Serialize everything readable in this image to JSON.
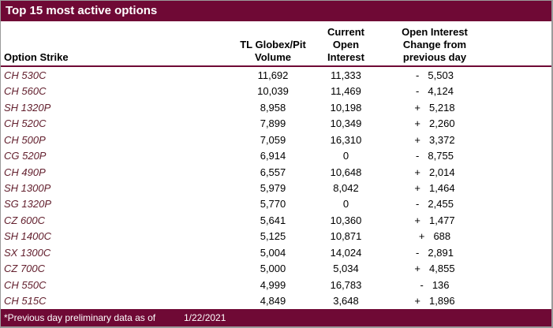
{
  "title": "Top 15 most active options",
  "columns": {
    "strike": "Option Strike",
    "volume": [
      "TL Globex/Pit",
      "Volume"
    ],
    "open_interest": [
      "Current",
      "Open",
      "Interest"
    ],
    "change": [
      "Open Interest",
      "Change from",
      "previous day"
    ]
  },
  "rows": [
    {
      "strike": "CH 530C",
      "volume": "11,692",
      "oi": "11,333",
      "sign": "-",
      "change": "5,503"
    },
    {
      "strike": "CH 560C",
      "volume": "10,039",
      "oi": "11,469",
      "sign": "-",
      "change": "4,124"
    },
    {
      "strike": "SH 1320P",
      "volume": "8,958",
      "oi": "10,198",
      "sign": "+",
      "change": "5,218"
    },
    {
      "strike": "CH 520C",
      "volume": "7,899",
      "oi": "10,349",
      "sign": "+",
      "change": "2,260"
    },
    {
      "strike": "CH 500P",
      "volume": "7,059",
      "oi": "16,310",
      "sign": "+",
      "change": "3,372"
    },
    {
      "strike": "CG 520P",
      "volume": "6,914",
      "oi": "0",
      "sign": "-",
      "change": "8,755"
    },
    {
      "strike": "CH 490P",
      "volume": "6,557",
      "oi": "10,648",
      "sign": "+",
      "change": "2,014"
    },
    {
      "strike": "SH 1300P",
      "volume": "5,979",
      "oi": "8,042",
      "sign": "+",
      "change": "1,464"
    },
    {
      "strike": "SG 1320P",
      "volume": "5,770",
      "oi": "0",
      "sign": "-",
      "change": "2,455"
    },
    {
      "strike": "CZ 600C",
      "volume": "5,641",
      "oi": "10,360",
      "sign": "+",
      "change": "1,477"
    },
    {
      "strike": "SH 1400C",
      "volume": "5,125",
      "oi": "10,871",
      "sign": "+",
      "change": "688"
    },
    {
      "strike": "SX 1300C",
      "volume": "5,004",
      "oi": "14,024",
      "sign": "-",
      "change": "2,891"
    },
    {
      "strike": "CZ 700C",
      "volume": "5,000",
      "oi": "5,034",
      "sign": "+",
      "change": "4,855"
    },
    {
      "strike": "CH 550C",
      "volume": "4,999",
      "oi": "16,783",
      "sign": "-",
      "change": "136"
    },
    {
      "strike": "CH 515C",
      "volume": "4,849",
      "oi": "3,648",
      "sign": "+",
      "change": "1,896"
    }
  ],
  "footer": {
    "note": "*Previous day preliminary data as of",
    "date": "1/22/2021"
  },
  "colors": {
    "maroon": "#6F0935",
    "strike_text": "#63202E",
    "border_gray": "#9B9B9B"
  }
}
